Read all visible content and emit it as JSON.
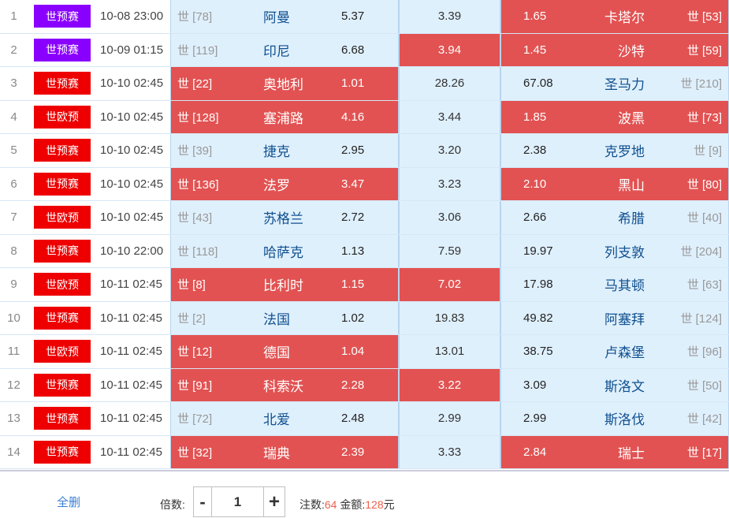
{
  "colors": {
    "selected": "#e25252",
    "unselected": "#dff0fd",
    "purple": "#8a00ff",
    "red": "#ee0000"
  },
  "matches": [
    {
      "idx": "1",
      "league": "世预赛",
      "league_color": "#8a00ff",
      "time": "10-08 23:00",
      "home_rank": "世 [78]",
      "home": "阿曼",
      "home_odd": "5.37",
      "draw": "3.39",
      "away_odd": "1.65",
      "away": "卡塔尔",
      "away_rank": "世 [53]",
      "sel": {
        "h": false,
        "d": false,
        "a": true
      }
    },
    {
      "idx": "2",
      "league": "世预赛",
      "league_color": "#8a00ff",
      "time": "10-09 01:15",
      "home_rank": "世 [119]",
      "home": "印尼",
      "home_odd": "6.68",
      "draw": "3.94",
      "away_odd": "1.45",
      "away": "沙特",
      "away_rank": "世 [59]",
      "sel": {
        "h": false,
        "d": true,
        "a": true
      }
    },
    {
      "idx": "3",
      "league": "世预赛",
      "league_color": "#ee0000",
      "time": "10-10 02:45",
      "home_rank": "世 [22]",
      "home": "奥地利",
      "home_odd": "1.01",
      "draw": "28.26",
      "away_odd": "67.08",
      "away": "圣马力",
      "away_rank": "世 [210]",
      "sel": {
        "h": true,
        "d": false,
        "a": false
      }
    },
    {
      "idx": "4",
      "league": "世欧预",
      "league_color": "#ee0000",
      "time": "10-10 02:45",
      "home_rank": "世 [128]",
      "home": "塞浦路",
      "home_odd": "4.16",
      "draw": "3.44",
      "away_odd": "1.85",
      "away": "波黑",
      "away_rank": "世 [73]",
      "sel": {
        "h": true,
        "d": false,
        "a": true
      }
    },
    {
      "idx": "5",
      "league": "世预赛",
      "league_color": "#ee0000",
      "time": "10-10 02:45",
      "home_rank": "世 [39]",
      "home": "捷克",
      "home_odd": "2.95",
      "draw": "3.20",
      "away_odd": "2.38",
      "away": "克罗地",
      "away_rank": "世 [9]",
      "sel": {
        "h": false,
        "d": false,
        "a": false
      }
    },
    {
      "idx": "6",
      "league": "世预赛",
      "league_color": "#ee0000",
      "time": "10-10 02:45",
      "home_rank": "世 [136]",
      "home": "法罗",
      "home_odd": "3.47",
      "draw": "3.23",
      "away_odd": "2.10",
      "away": "黑山",
      "away_rank": "世 [80]",
      "sel": {
        "h": true,
        "d": false,
        "a": true
      }
    },
    {
      "idx": "7",
      "league": "世欧预",
      "league_color": "#ee0000",
      "time": "10-10 02:45",
      "home_rank": "世 [43]",
      "home": "苏格兰",
      "home_odd": "2.72",
      "draw": "3.06",
      "away_odd": "2.66",
      "away": "希腊",
      "away_rank": "世 [40]",
      "sel": {
        "h": false,
        "d": false,
        "a": false
      }
    },
    {
      "idx": "8",
      "league": "世预赛",
      "league_color": "#ee0000",
      "time": "10-10 22:00",
      "home_rank": "世 [118]",
      "home": "哈萨克",
      "home_odd": "1.13",
      "draw": "7.59",
      "away_odd": "19.97",
      "away": "列支敦",
      "away_rank": "世 [204]",
      "sel": {
        "h": false,
        "d": false,
        "a": false
      }
    },
    {
      "idx": "9",
      "league": "世欧预",
      "league_color": "#ee0000",
      "time": "10-11 02:45",
      "home_rank": "世 [8]",
      "home": "比利时",
      "home_odd": "1.15",
      "draw": "7.02",
      "away_odd": "17.98",
      "away": "马其顿",
      "away_rank": "世 [63]",
      "sel": {
        "h": true,
        "d": true,
        "a": false
      }
    },
    {
      "idx": "10",
      "league": "世预赛",
      "league_color": "#ee0000",
      "time": "10-11 02:45",
      "home_rank": "世 [2]",
      "home": "法国",
      "home_odd": "1.02",
      "draw": "19.83",
      "away_odd": "49.82",
      "away": "阿塞拜",
      "away_rank": "世 [124]",
      "sel": {
        "h": false,
        "d": false,
        "a": false
      }
    },
    {
      "idx": "11",
      "league": "世欧预",
      "league_color": "#ee0000",
      "time": "10-11 02:45",
      "home_rank": "世 [12]",
      "home": "德国",
      "home_odd": "1.04",
      "draw": "13.01",
      "away_odd": "38.75",
      "away": "卢森堡",
      "away_rank": "世 [96]",
      "sel": {
        "h": true,
        "d": false,
        "a": false
      }
    },
    {
      "idx": "12",
      "league": "世预赛",
      "league_color": "#ee0000",
      "time": "10-11 02:45",
      "home_rank": "世 [91]",
      "home": "科索沃",
      "home_odd": "2.28",
      "draw": "3.22",
      "away_odd": "3.09",
      "away": "斯洛文",
      "away_rank": "世 [50]",
      "sel": {
        "h": true,
        "d": true,
        "a": false
      }
    },
    {
      "idx": "13",
      "league": "世预赛",
      "league_color": "#ee0000",
      "time": "10-11 02:45",
      "home_rank": "世 [72]",
      "home": "北爱",
      "home_odd": "2.48",
      "draw": "2.99",
      "away_odd": "2.99",
      "away": "斯洛伐",
      "away_rank": "世 [42]",
      "sel": {
        "h": false,
        "d": false,
        "a": false
      }
    },
    {
      "idx": "14",
      "league": "世预赛",
      "league_color": "#ee0000",
      "time": "10-11 02:45",
      "home_rank": "世 [32]",
      "home": "瑞典",
      "home_odd": "2.39",
      "draw": "3.33",
      "away_odd": "2.84",
      "away": "瑞士",
      "away_rank": "世 [17]",
      "sel": {
        "h": true,
        "d": false,
        "a": true
      }
    }
  ],
  "footer": {
    "delete_all": "全删",
    "multiplier_label": "倍数:",
    "minus": "-",
    "multiplier": "1",
    "plus": "+",
    "bets_label": "注数:",
    "bets": "64",
    "amount_label": "金额:",
    "amount": "128",
    "currency": "元"
  }
}
